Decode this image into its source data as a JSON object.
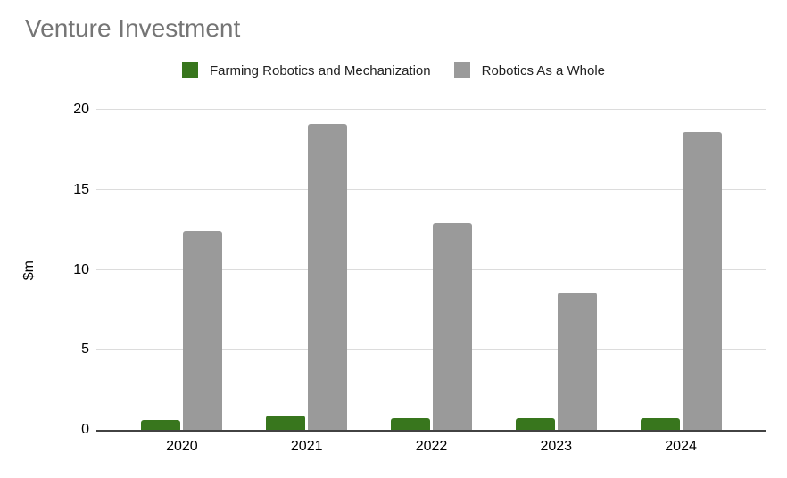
{
  "chart_data": {
    "type": "bar",
    "title": "Venture Investment",
    "categories": [
      "2020",
      "2021",
      "2022",
      "2023",
      "2024"
    ],
    "series": [
      {
        "name": "Farming Robotics and Mechanization",
        "color": "#38761d",
        "values": [
          0.6,
          0.9,
          0.7,
          0.7,
          0.7
        ]
      },
      {
        "name": "Robotics As a Whole",
        "color": "#9a9a9a",
        "values": [
          12.4,
          19.1,
          12.9,
          8.6,
          18.6
        ]
      }
    ],
    "xlabel": "",
    "ylabel": "$m",
    "ylim": [
      0,
      20
    ],
    "yticks": [
      0,
      5,
      10,
      15,
      20
    ],
    "grid": true,
    "legend_position": "top",
    "colors": {
      "title_text": "#757575",
      "axis_text": "#000000",
      "gridline": "#dcdcdc",
      "baseline": "#424242",
      "background": "#ffffff"
    }
  }
}
